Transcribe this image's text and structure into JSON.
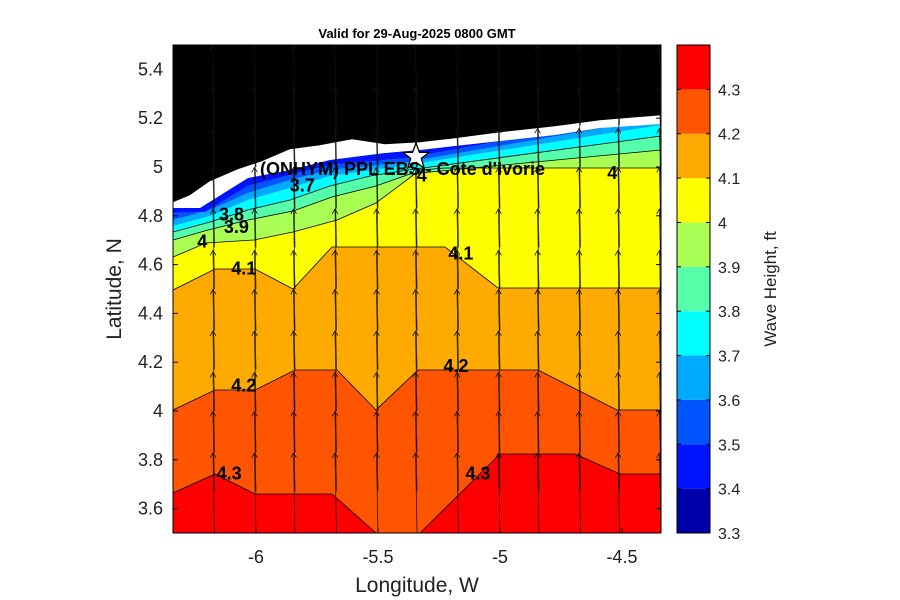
{
  "chart_data": {
    "type": "heatmap",
    "subtype": "filled-contour-with-vectors",
    "title": "Valid for 29-Aug-2025 0800 GMT",
    "xlabel": "Longitude, W",
    "ylabel": "Latitude, N",
    "colorbar_label": "Wave Height, ft",
    "xlim": [
      -6.34,
      -4.34
    ],
    "ylim": [
      3.5,
      5.5
    ],
    "clim": [
      3.3,
      4.4
    ],
    "x_ticks": [
      -6,
      -5.5,
      -5,
      -4.5
    ],
    "x_tick_labels": [
      "-6",
      "-5.5",
      "-5",
      "-4.5"
    ],
    "y_ticks": [
      3.6,
      3.8,
      4.0,
      4.2,
      4.4,
      4.6,
      4.8,
      5.0,
      5.2,
      5.4
    ],
    "y_tick_labels": [
      "3.6",
      "3.8",
      "4",
      "4.2",
      "4.4",
      "4.6",
      "4.8",
      "5",
      "5.2",
      "5.4"
    ],
    "colorbar_ticks": [
      3.3,
      3.4,
      3.5,
      3.6,
      3.7,
      3.8,
      3.9,
      4.0,
      4.1,
      4.2,
      4.3
    ],
    "colorbar_tick_labels": [
      "3.3",
      "3.4",
      "3.5",
      "3.6",
      "3.7",
      "3.8",
      "3.9",
      "4",
      "4.1",
      "4.2",
      "4.3"
    ],
    "levels": [
      {
        "min": 3.3,
        "max": 3.4,
        "color": "#0000aa"
      },
      {
        "min": 3.4,
        "max": 3.5,
        "color": "#0015ff"
      },
      {
        "min": 3.5,
        "max": 3.6,
        "color": "#0055ff"
      },
      {
        "min": 3.6,
        "max": 3.7,
        "color": "#00aaff"
      },
      {
        "min": 3.7,
        "max": 3.8,
        "color": "#00ffff"
      },
      {
        "min": 3.8,
        "max": 3.9,
        "color": "#55ffaa"
      },
      {
        "min": 3.9,
        "max": 4.0,
        "color": "#aaff55"
      },
      {
        "min": 4.0,
        "max": 4.1,
        "color": "#ffff00"
      },
      {
        "min": 4.1,
        "max": 4.2,
        "color": "#ffaa00"
      },
      {
        "min": 4.2,
        "max": 4.3,
        "color": "#ff5500"
      },
      {
        "min": 4.3,
        "max": 4.4,
        "color": "#ff0000"
      }
    ],
    "land_color": "#000000",
    "station_marker": {
      "lon": -5.33,
      "lat": 5.05,
      "label": "(ONHYM) PPL EBS - Cote d'Ivorie"
    },
    "contour_labels": [
      {
        "text": "3.7",
        "lon": -5.81,
        "lat": 4.9
      },
      {
        "text": "3.8",
        "lon": -6.1,
        "lat": 4.78
      },
      {
        "text": "3.9",
        "lon": -6.08,
        "lat": 4.73
      },
      {
        "text": "4",
        "lon": -6.22,
        "lat": 4.67
      },
      {
        "text": "4.1",
        "lon": -6.05,
        "lat": 4.56
      },
      {
        "text": "4.1",
        "lon": -5.16,
        "lat": 4.62
      },
      {
        "text": "4.2",
        "lon": -6.05,
        "lat": 4.08
      },
      {
        "text": "4.2",
        "lon": -5.18,
        "lat": 4.16
      },
      {
        "text": "4.3",
        "lon": -6.11,
        "lat": 3.72
      },
      {
        "text": "4.3",
        "lon": -5.09,
        "lat": 3.72
      },
      {
        "text": "4",
        "lon": -5.32,
        "lat": 4.94
      },
      {
        "text": "4",
        "lon": -4.54,
        "lat": 4.95
      }
    ],
    "vector_field": {
      "direction": "north",
      "lon": [
        -6.17,
        -6.0,
        -5.84,
        -5.67,
        -5.5,
        -5.34,
        -5.17,
        -5.0,
        -4.84,
        -4.67,
        -4.51,
        -4.34
      ],
      "lat": [
        3.5,
        3.67,
        3.83,
        4.0,
        4.17,
        4.33,
        4.5,
        4.67,
        4.83,
        5.0,
        5.17
      ]
    }
  }
}
